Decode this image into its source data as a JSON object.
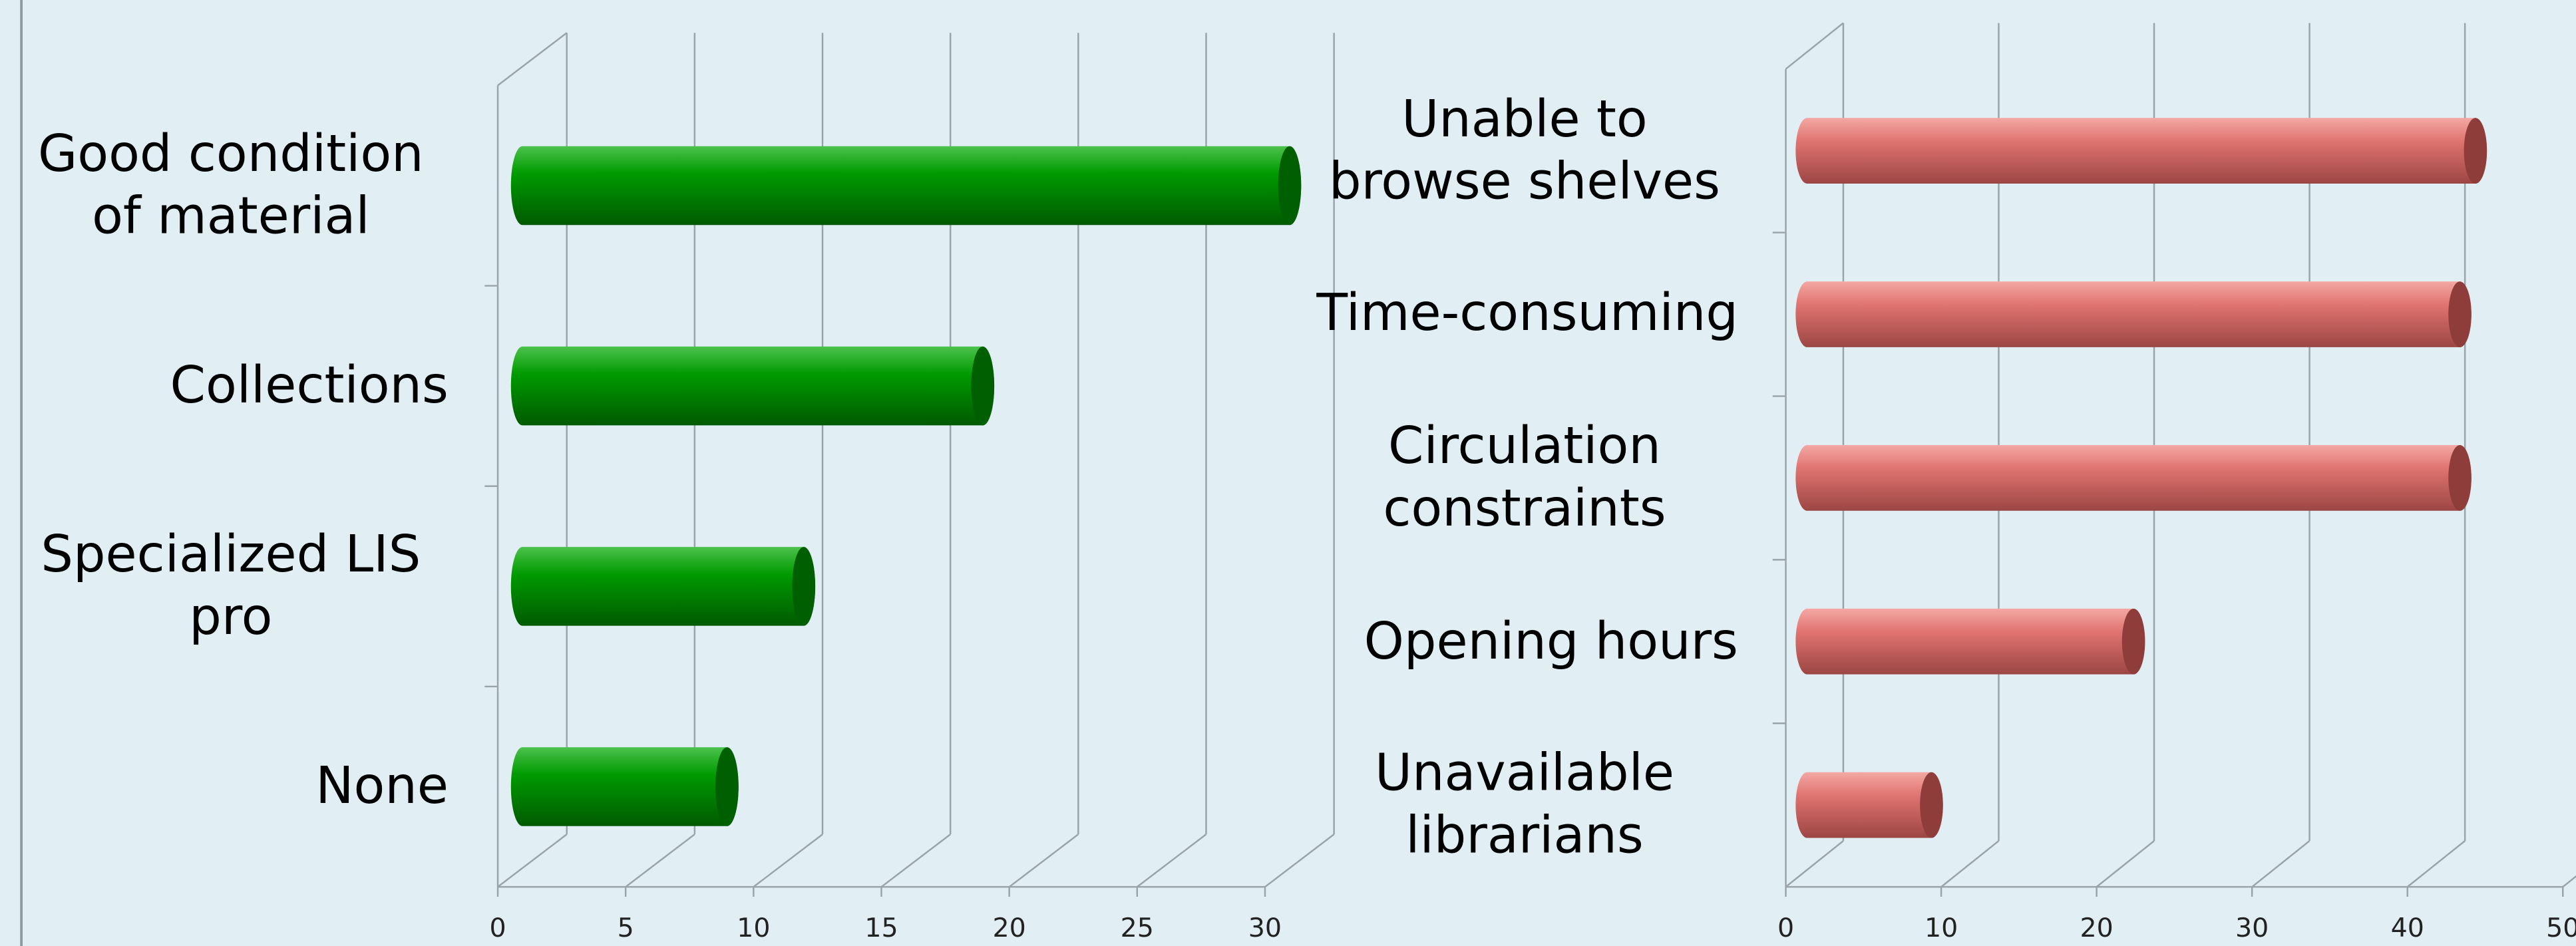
{
  "chart_data": [
    {
      "type": "bar",
      "orientation": "horizontal",
      "categories": [
        "Good condition of material",
        "Collections",
        "Specialized LIS pro",
        "None"
      ],
      "values": [
        30,
        18,
        11,
        8
      ],
      "color": "#009a00",
      "xlim": [
        0,
        30
      ],
      "xticks": [
        0,
        5,
        10,
        15,
        20,
        25,
        30
      ],
      "grid": true
    },
    {
      "type": "bar",
      "orientation": "horizontal",
      "categories": [
        "Unable to browse shelves",
        "Time-consuming",
        "Circulation constraints",
        "Opening hours",
        "Unavailable librarians"
      ],
      "values": [
        43,
        42,
        42,
        21,
        8
      ],
      "color": "#e07470",
      "xlim": [
        0,
        50
      ],
      "xticks": [
        0,
        10,
        20,
        30,
        40,
        50
      ],
      "grid": true
    }
  ]
}
